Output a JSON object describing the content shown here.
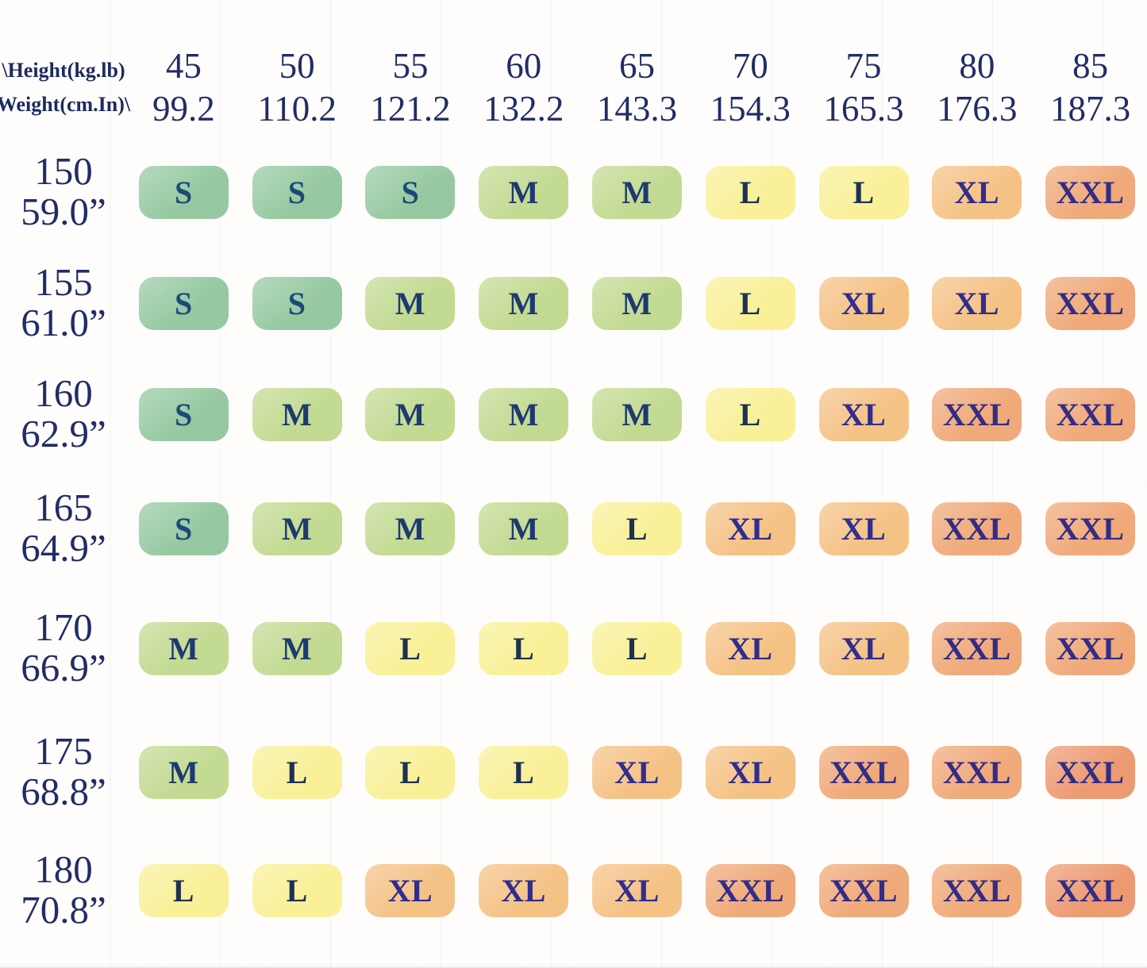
{
  "corner": {
    "line1": "\\Height(kg.lb)",
    "line2": "Weight(cm.In)\\"
  },
  "colors": {
    "background": "#fefdfc",
    "header_text": "#222c66",
    "gridline": "rgba(150,160,190,0.10)"
  },
  "chart_data": {
    "type": "table",
    "title": "Size chart: height/weight to garment size",
    "columns": [
      {
        "kg": "45",
        "lb": "99.2"
      },
      {
        "kg": "50",
        "lb": "110.2"
      },
      {
        "kg": "55",
        "lb": "121.2"
      },
      {
        "kg": "60",
        "lb": "132.2"
      },
      {
        "kg": "65",
        "lb": "143.3"
      },
      {
        "kg": "70",
        "lb": "154.3"
      },
      {
        "kg": "75",
        "lb": "165.3"
      },
      {
        "kg": "80",
        "lb": "176.3"
      },
      {
        "kg": "85",
        "lb": "187.3"
      }
    ],
    "rows": [
      {
        "cm": "150",
        "inch": "59.0”",
        "sizes": [
          "S",
          "S",
          "S",
          "M",
          "M",
          "L",
          "L",
          "XL",
          "XXL"
        ]
      },
      {
        "cm": "155",
        "inch": "61.0”",
        "sizes": [
          "S",
          "S",
          "M",
          "M",
          "M",
          "L",
          "XL",
          "XL",
          "XXL"
        ]
      },
      {
        "cm": "160",
        "inch": "62.9”",
        "sizes": [
          "S",
          "M",
          "M",
          "M",
          "M",
          "L",
          "XL",
          "XXL",
          "XXL"
        ]
      },
      {
        "cm": "165",
        "inch": "64.9”",
        "sizes": [
          "S",
          "M",
          "M",
          "M",
          "L",
          "XL",
          "XL",
          "XXL",
          "XXL"
        ]
      },
      {
        "cm": "170",
        "inch": "66.9”",
        "sizes": [
          "M",
          "M",
          "L",
          "L",
          "L",
          "XL",
          "XL",
          "XXL",
          "XXL"
        ]
      },
      {
        "cm": "175",
        "inch": "68.8”",
        "sizes": [
          "M",
          "L",
          "L",
          "L",
          "XL",
          "XL",
          "XXL",
          "XXL",
          "XXL"
        ]
      },
      {
        "cm": "180",
        "inch": "70.8”",
        "sizes": [
          "L",
          "L",
          "XL",
          "XL",
          "XL",
          "XXL",
          "XXL",
          "XXL",
          "XXL"
        ]
      }
    ],
    "size_colors": {
      "S": {
        "bg": "#96c9a1",
        "text": "#1b4a78"
      },
      "M": {
        "bg": "#c3da92",
        "text": "#1d3a70"
      },
      "L": {
        "bg": "#f9f098",
        "text": "#1d3153"
      },
      "XL": {
        "bg": "#f5c286",
        "text": "#2f2d8e"
      },
      "XXL": {
        "bg": "#f0a97a",
        "text": "#332c85"
      }
    },
    "hot_cells": {
      "positions": [
        [
          5,
          8
        ],
        [
          6,
          8
        ]
      ],
      "bg": "#ed9a72"
    }
  }
}
